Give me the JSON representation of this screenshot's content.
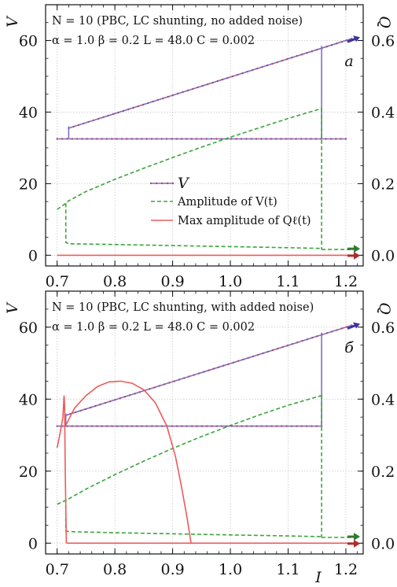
{
  "colors": {
    "V": "#7b6fc6",
    "V_dots": "#b04a6a",
    "amplitude_V": "#3aa53a",
    "max_Q": "#ee5a5a",
    "arrow_blue": "#3b35a0",
    "arrow_green": "#2f7a2f",
    "arrow_red": "#b02a2a",
    "grid": "#c8c8c8"
  },
  "chart_data": [
    {
      "type": "line",
      "panel_label": "a",
      "annotation_line1": "N = 10 (PBC, LC shunting, no added noise)",
      "annotation_line2": "α = 1.0  β = 0.2  L = 48.0  C = 0.002",
      "xlabel": "I",
      "ylabel_left": "V",
      "ylabel_right": "Q",
      "xlim": [
        0.68,
        1.23
      ],
      "ylim_left": [
        -3,
        70
      ],
      "ylim_right": [
        -0.03,
        0.7
      ],
      "xticks": [
        "0.7",
        "0.8",
        "0.9",
        "1.0",
        "1.1",
        "1.2"
      ],
      "xtick_values": [
        0.7,
        0.8,
        0.9,
        1.0,
        1.1,
        1.2
      ],
      "yticks_left": [
        "0",
        "20",
        "40",
        "60"
      ],
      "ytick_values_left": [
        0,
        20,
        40,
        60
      ],
      "yticks_right": [
        "0.0",
        "0.2",
        "0.4",
        "0.6"
      ],
      "ytick_values_right": [
        0.0,
        0.2,
        0.4,
        0.6
      ],
      "grid": true,
      "legend": [
        "V",
        "Amplitude of V(t)",
        "Max amplitude of Q_ℓ(t)"
      ],
      "legend_html": [
        "V",
        "Amplitude of V(t)",
        "Max amplitude of Qℓ(t)"
      ],
      "series": [
        {
          "name": "V",
          "axis": "left",
          "style": "solid-dotted",
          "x": [
            0.715,
            1.158,
            1.158,
            0.72,
            0.72,
            1.2
          ],
          "y": [
            32.5,
            32.5,
            58.5,
            58.5,
            35.5,
            60.5
          ],
          "segments": [
            {
              "x": [
                0.7,
                1.2
              ],
              "y": [
                32.5,
                32.5
              ],
              "xclip": [
                0.7,
                1.158
              ]
            },
            {
              "x": [
                0.72,
                1.21
              ],
              "y": [
                35.5,
                60.5
              ]
            },
            {
              "x": [
                0.72,
                0.72
              ],
              "y": [
                32.5,
                36
              ]
            },
            {
              "x": [
                1.158,
                1.158
              ],
              "y": [
                32.5,
                58.5
              ]
            }
          ]
        },
        {
          "name": "Amplitude of V(t)",
          "axis": "left",
          "style": "dashed",
          "segments": [
            {
              "x": [
                0.7,
                0.715,
                0.72,
                0.75,
                0.8,
                0.85,
                0.9,
                0.95,
                1.0,
                1.05,
                1.1,
                1.158
              ],
              "y": [
                12.8,
                14.5,
                15.2,
                17.8,
                21.2,
                24.3,
                27.3,
                30.2,
                33.0,
                35.6,
                38.2,
                41.0
              ]
            },
            {
              "x": [
                1.158,
                1.158
              ],
              "y": [
                41.0,
                1.6
              ]
            },
            {
              "x": [
                1.158,
                1.21
              ],
              "y": [
                1.6,
                1.6
              ]
            },
            {
              "x": [
                0.715,
                0.715,
                0.72,
                0.8,
                0.9,
                1.0,
                1.1,
                1.158
              ],
              "y": [
                14.5,
                3.6,
                3.2,
                3.0,
                2.7,
                2.4,
                2.1,
                1.9
              ]
            }
          ]
        },
        {
          "name": "Max amplitude of Q_ℓ(t)",
          "axis": "left",
          "style": "solid",
          "segments": [
            {
              "x": [
                0.7,
                1.21
              ],
              "y": [
                0.0,
                0.0
              ]
            }
          ]
        }
      ]
    },
    {
      "type": "line",
      "panel_label": "б",
      "annotation_line1": "N = 10 (PBC, LC shunting, with added noise)",
      "annotation_line2": "α = 1.0  β = 0.2  L = 48.0  C = 0.002",
      "xlabel": "I",
      "ylabel_left": "V",
      "ylabel_right": "Q",
      "xlim": [
        0.68,
        1.23
      ],
      "ylim_left": [
        -3,
        70
      ],
      "ylim_right": [
        -0.03,
        0.7
      ],
      "xticks": [
        "0.7",
        "0.8",
        "0.9",
        "1.0",
        "1.1",
        "1.2"
      ],
      "xtick_values": [
        0.7,
        0.8,
        0.9,
        1.0,
        1.1,
        1.2
      ],
      "yticks_left": [
        "0",
        "20",
        "40",
        "60"
      ],
      "ytick_values_left": [
        0,
        20,
        40,
        60
      ],
      "yticks_right": [
        "0.0",
        "0.2",
        "0.4",
        "0.6"
      ],
      "ytick_values_right": [
        0.0,
        0.2,
        0.4,
        0.6
      ],
      "grid": true,
      "series": [
        {
          "name": "V",
          "axis": "left",
          "style": "solid-dotted",
          "segments": [
            {
              "x": [
                0.7,
                1.158
              ],
              "y": [
                32.5,
                32.5
              ]
            },
            {
              "x": [
                0.715,
                1.21
              ],
              "y": [
                35.5,
                60.5
              ]
            },
            {
              "x": [
                0.715,
                0.715
              ],
              "y": [
                32.5,
                36
              ]
            },
            {
              "x": [
                1.158,
                1.158
              ],
              "y": [
                32.5,
                58.5
              ]
            }
          ]
        },
        {
          "name": "Amplitude of V(t)",
          "axis": "left",
          "style": "dashed",
          "segments": [
            {
              "x": [
                0.7,
                0.72,
                0.75,
                0.8,
                0.85,
                0.9,
                0.95,
                1.0,
                1.05,
                1.1,
                1.158
              ],
              "y": [
                10.8,
                12.3,
                15.0,
                19.0,
                22.8,
                26.3,
                29.6,
                32.7,
                35.6,
                38.3,
                41.0
              ]
            },
            {
              "x": [
                1.158,
                1.158
              ],
              "y": [
                41.0,
                1.6
              ]
            },
            {
              "x": [
                1.158,
                1.21
              ],
              "y": [
                1.6,
                1.6
              ]
            },
            {
              "x": [
                0.715,
                0.715,
                0.72,
                0.8,
                0.9,
                1.0,
                1.1,
                1.158
              ],
              "y": [
                12.3,
                3.4,
                3.2,
                2.9,
                2.6,
                2.3,
                2.0,
                1.8
              ]
            }
          ]
        },
        {
          "name": "Max amplitude of Q_ℓ(t)",
          "axis": "left",
          "style": "solid",
          "segments": [
            {
              "x": [
                0.7,
                0.705,
                0.71,
                0.712,
                0.713,
                0.714,
                0.716
              ],
              "y": [
                26.5,
                30.5,
                35.0,
                41.0,
                38.0,
                20.0,
                0.0
              ]
            },
            {
              "x": [
                0.716,
                1.21
              ],
              "y": [
                0.0,
                0.0
              ]
            },
            {
              "x": [
                0.716,
                0.73,
                0.75,
                0.77,
                0.79,
                0.81,
                0.83,
                0.85,
                0.87,
                0.89,
                0.905,
                0.915,
                0.925,
                0.93,
                0.932
              ],
              "y": [
                33.0,
                37.5,
                41.0,
                43.5,
                44.8,
                45.0,
                44.4,
                42.6,
                39.0,
                32.5,
                24.0,
                16.0,
                7.0,
                2.0,
                0.0
              ]
            }
          ]
        }
      ]
    }
  ]
}
